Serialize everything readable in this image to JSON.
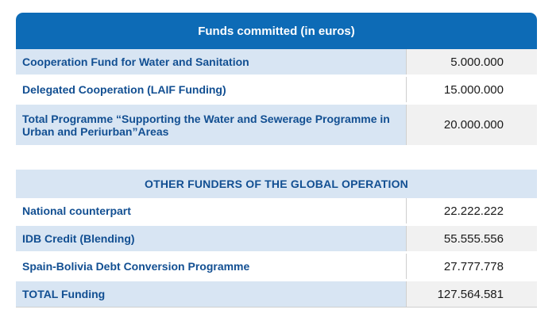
{
  "funds_table": {
    "header": "Funds committed (in euros)",
    "rows": [
      {
        "label": "Cooperation Fund for Water and Sanitation",
        "value": "5.000.000"
      },
      {
        "label": "Delegated Cooperation (LAIF Funding)",
        "value": "15.000.000"
      },
      {
        "label": "Total Programme “Supporting the Water and Sewerage Programme in Urban and Periurban”Areas",
        "value": "20.000.000"
      }
    ]
  },
  "other_funders": {
    "header": "OTHER FUNDERS OF THE GLOBAL OPERATION",
    "rows": [
      {
        "label": "National counterpart",
        "value": "22.222.222"
      },
      {
        "label": "IDB Credit (Blending)",
        "value": "55.555.556"
      },
      {
        "label": "Spain-Bolivia Debt Conversion Programme",
        "value": "27.777.778"
      },
      {
        "label": "TOTAL  Funding",
        "value": "127.564.581"
      }
    ]
  },
  "colors": {
    "header_blue": "#0d6bb6",
    "label_blue": "#124f92",
    "light_blue_row": "#d8e5f3"
  }
}
